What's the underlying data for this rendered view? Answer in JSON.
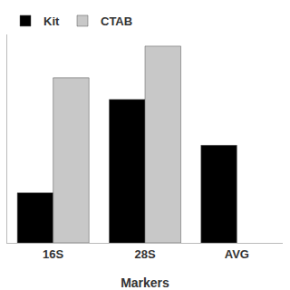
{
  "chart_data": {
    "type": "bar",
    "x_label": "Markers",
    "categories": [
      "16S",
      "28S",
      "AVG"
    ],
    "series": [
      {
        "name": "Kit",
        "color": "#000000",
        "values": [
          60,
          172,
          117
        ]
      },
      {
        "name": "CTAB",
        "color": "#c8c8c8",
        "values": [
          198,
          236,
          null
        ]
      }
    ],
    "ylim": [
      0,
      250
    ],
    "tick_labels": "x",
    "grid": false,
    "legend": "top left"
  }
}
